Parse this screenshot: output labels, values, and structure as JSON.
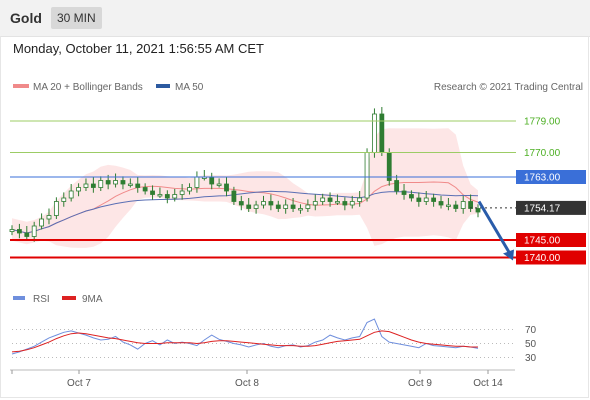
{
  "header": {
    "title": "Gold",
    "timeframe": "30 MIN"
  },
  "date_line": "Monday, October 11, 2021 1:56:55 AM CET",
  "legend": {
    "ma20_label": "MA 20 + Bollinger Bands",
    "ma50_label": "MA 50",
    "credit": "Research © 2021 Trading Central",
    "rsi_label": "RSI",
    "ma9_label": "9MA"
  },
  "colors": {
    "candle": "#2f7d32",
    "ma20": "#f08a8a",
    "bollinger_fill": "#fde2e2",
    "ma50": "#5a6fb4",
    "green_level": "#9ccc65",
    "green_text": "#4caf23",
    "blue_level": "#3a6fd8",
    "red_level": "#e00000",
    "current": "#333333",
    "arrow": "#2a5caa",
    "rsi": "#6f8fdd",
    "rsi_ma": "#dd2222"
  },
  "chart_data": [
    {
      "type": "candlestick",
      "title": "Gold",
      "subtitle": "30 MIN",
      "price_range": [
        1733,
        1785
      ],
      "x_tick_labels": [
        "Oct 7",
        "Oct 8",
        "Oct 9",
        "Oct 14"
      ],
      "levels": [
        {
          "value": 1779.0,
          "label": "1779.00",
          "kind": "resistance"
        },
        {
          "value": 1770.0,
          "label": "1770.00",
          "kind": "resistance"
        },
        {
          "value": 1763.0,
          "label": "1763.00",
          "kind": "pivot"
        },
        {
          "value": 1754.17,
          "label": "1754.17",
          "kind": "current"
        },
        {
          "value": 1745.0,
          "label": "1745.00",
          "kind": "support"
        },
        {
          "value": 1740.0,
          "label": "1740.00",
          "kind": "support"
        }
      ],
      "close_series": [
        1748,
        1747,
        1746,
        1749,
        1751,
        1752,
        1756,
        1757,
        1759,
        1760,
        1761,
        1760,
        1762,
        1761,
        1762,
        1761,
        1761,
        1760,
        1759,
        1758,
        1758,
        1757,
        1758,
        1759,
        1760,
        1763,
        1763,
        1761,
        1761,
        1759,
        1756,
        1755,
        1754,
        1755,
        1756,
        1755,
        1754,
        1755,
        1754,
        1754,
        1755,
        1756,
        1757,
        1756,
        1756,
        1755,
        1756,
        1757,
        1770,
        1781,
        1770,
        1762,
        1759,
        1758,
        1757,
        1756,
        1757,
        1756,
        1755,
        1755,
        1754,
        1756,
        1754,
        1753
      ],
      "series": [
        {
          "name": "MA 20 + Bollinger Bands",
          "kind": "ma20"
        },
        {
          "name": "MA 50",
          "kind": "ma50"
        }
      ],
      "forecast": {
        "from": 1756,
        "to": 1740
      }
    },
    {
      "type": "line",
      "y_ticks": [
        70,
        50,
        30
      ],
      "y_range": [
        15,
        95
      ],
      "series": [
        {
          "name": "RSI",
          "values": [
            35,
            38,
            42,
            46,
            52,
            58,
            62,
            66,
            68,
            65,
            62,
            58,
            55,
            56,
            60,
            52,
            48,
            42,
            50,
            54,
            48,
            55,
            50,
            52,
            50,
            47,
            55,
            62,
            56,
            53,
            50,
            48,
            45,
            48,
            50,
            46,
            44,
            47,
            48,
            45,
            47,
            52,
            55,
            62,
            58,
            55,
            58,
            60,
            80,
            85,
            60,
            52,
            50,
            48,
            46,
            44,
            50,
            47,
            46,
            45,
            44,
            46,
            45,
            43
          ]
        },
        {
          "name": "9MA",
          "values": [
            38,
            39,
            41,
            44,
            48,
            52,
            57,
            61,
            64,
            65,
            64,
            62,
            60,
            58,
            57,
            55,
            53,
            51,
            50,
            50,
            50,
            51,
            51,
            51,
            51,
            50,
            51,
            53,
            54,
            54,
            53,
            52,
            51,
            50,
            49,
            48,
            47,
            47,
            47,
            46,
            46,
            47,
            49,
            51,
            53,
            54,
            55,
            56,
            61,
            66,
            68,
            67,
            63,
            59,
            55,
            52,
            50,
            49,
            48,
            47,
            46,
            46,
            45,
            45
          ]
        }
      ]
    }
  ]
}
